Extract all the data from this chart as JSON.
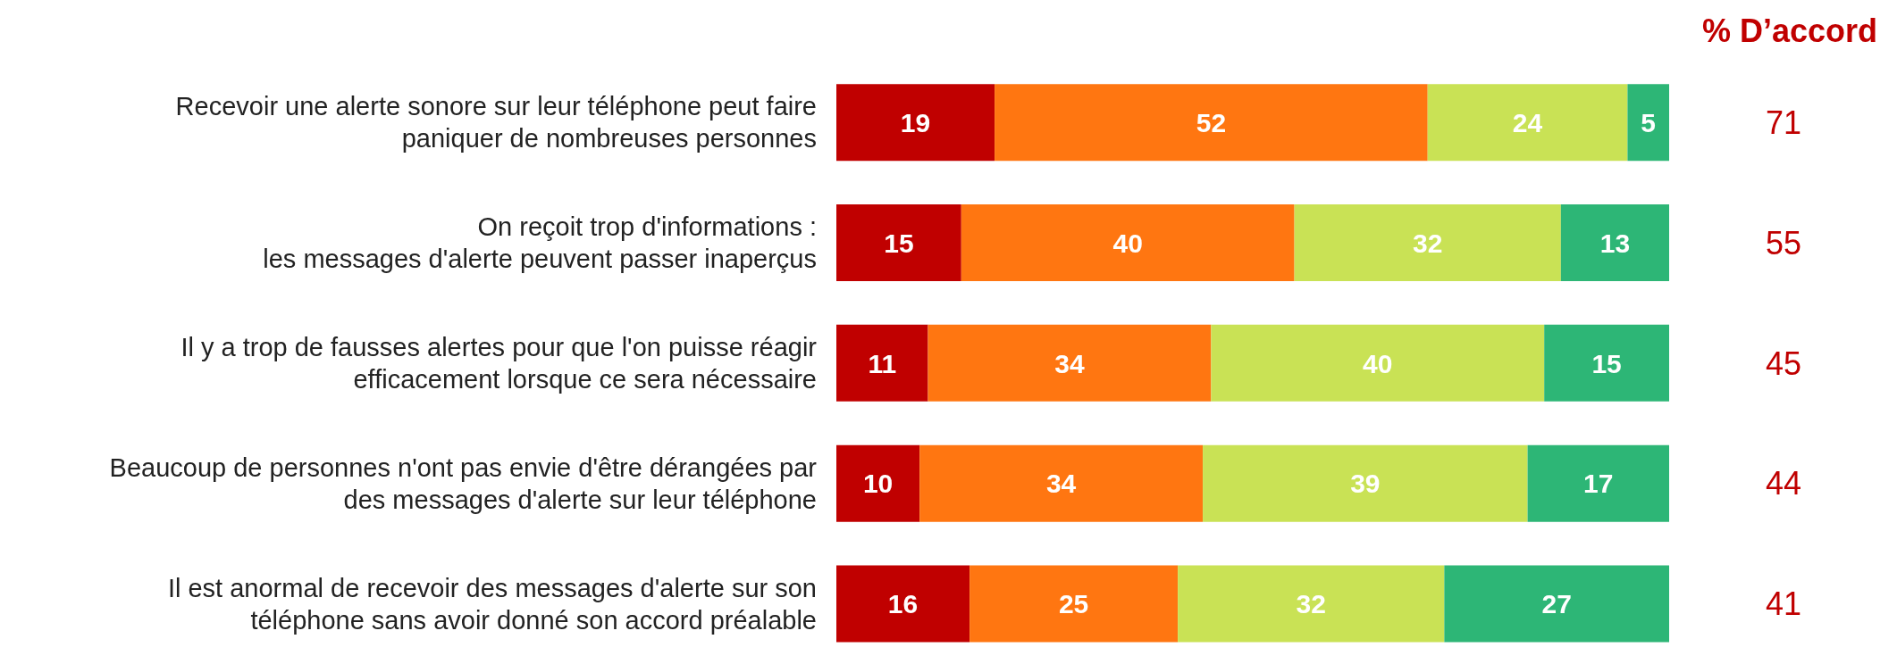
{
  "chart_data": {
    "type": "bar",
    "orientation": "horizontal",
    "stacked": true,
    "data_labels": true,
    "grid": false,
    "legend": false,
    "tick_labels": "y",
    "categories": [
      "Recevoir une alerte sonore sur leur téléphone peut faire\npaniquer de nombreuses personnes",
      "On reçoit trop d'informations :\nles messages d'alerte peuvent passer inaperçus",
      "Il y a trop de fausses alertes pour que l'on puisse réagir\nefficacement lorsque ce sera nécessaire",
      "Beaucoup de personnes n'ont pas envie d'être dérangées par\ndes messages d'alerte sur leur téléphone",
      "Il est anormal de recevoir des messages d'alerte sur son\ntéléphone sans avoir donné son accord préalable"
    ],
    "series": [
      {
        "color": "#c00000",
        "values": [
          19,
          15,
          11,
          10,
          16
        ]
      },
      {
        "color": "#ff7611",
        "values": [
          52,
          40,
          34,
          34,
          25
        ]
      },
      {
        "color": "#c9e255",
        "values": [
          24,
          32,
          40,
          39,
          32
        ]
      },
      {
        "color": "#2db676",
        "values": [
          5,
          13,
          15,
          17,
          27
        ]
      }
    ],
    "annotations": [
      "% D’accord",
      "71",
      "55",
      "45",
      "44",
      "41"
    ]
  }
}
